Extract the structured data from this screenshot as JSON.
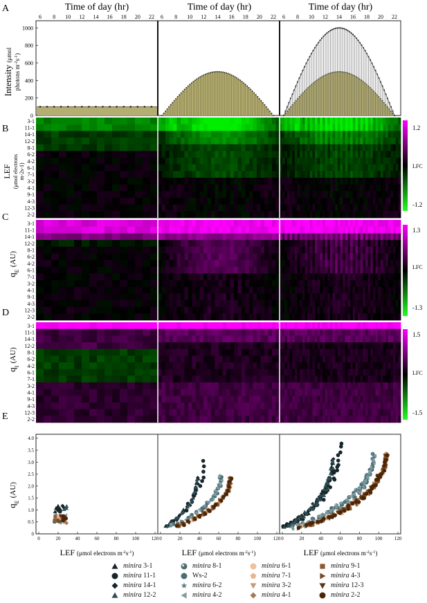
{
  "panel_letters": [
    "A",
    "B",
    "C",
    "D",
    "E"
  ],
  "colors": {
    "bar_fill": "#b5ae72",
    "bar_line": "#6a6536",
    "magenta": "#ff00ff",
    "green": "#22ee22",
    "dark": "#2a3a3a"
  },
  "timeaxis": {
    "title": "Time of day (hr)",
    "ticks": [
      "6",
      "8",
      "10",
      "12",
      "14",
      "16",
      "18",
      "20",
      "22"
    ]
  },
  "panelA": {
    "ylabel_main": "Intensity",
    "ylabel_sub1": "(μmol",
    "ylabel_sub2": "photons m",
    "ylabel_sup": "-2",
    "ylabel_s": "s",
    "ylabel_sup2": "-1",
    "ylabel_close": ")",
    "yticks": [
      "0",
      "200",
      "400",
      "600",
      "800",
      "1000"
    ]
  },
  "heatmap_rows": [
    "3-1",
    "11-1",
    "14-1",
    "12-2",
    "8-1",
    "6-2",
    "4-2",
    "6-1",
    "7-1",
    "3-2",
    "4-1",
    "9-1",
    "4-3",
    "12-3",
    "2-2"
  ],
  "panelB": {
    "ylabel": "LEF",
    "ylabel_sub": "(μmol electrons",
    "ylabel_sub2": "m-2s-1)",
    "scale_top": "1.2",
    "scale_mid": "LFC",
    "scale_bot": "-1.2"
  },
  "panelC": {
    "ylabel": "q",
    "ylabel_sub": "E",
    "ylabel_unit": "(AU)",
    "scale_top": "1.3",
    "scale_mid": "LFC",
    "scale_bot": "-1.3"
  },
  "panelD": {
    "ylabel": "q",
    "ylabel_sub": "I",
    "ylabel_unit": "(AU)",
    "scale_top": "1.5",
    "scale_mid": "LFC",
    "scale_bot": "-1.5"
  },
  "panelE": {
    "ylabel": "q",
    "ylabel_sub": "E",
    "ylabel_unit": "(AU)",
    "yticks": [
      "0",
      "0.5",
      "1.0",
      "1.5",
      "2.0",
      "2.5",
      "3.0",
      "3.5",
      "4.0"
    ],
    "xticks": [
      "0",
      "20",
      "40",
      "60",
      "80",
      "100",
      "120"
    ],
    "xlabel_main": "LEF",
    "xlabel_sub": "(μmol electrons m",
    "xlabel_sup": "-2",
    "xlabel_s": "s",
    "xlabel_sup2": "-1",
    "xlabel_close": ")"
  },
  "legend": [
    {
      "genus": "minira",
      "id": "3-1",
      "marker": "triangle",
      "color": "#17262a"
    },
    {
      "genus": "minira",
      "id": "11-1",
      "marker": "circle",
      "color": "#17262a"
    },
    {
      "genus": "minira",
      "id": "14-1",
      "marker": "diamond",
      "color": "#17262a"
    },
    {
      "genus": "minira",
      "id": "12-2",
      "marker": "triangle",
      "color": "#2f4f55"
    },
    {
      "genus": "minira",
      "id": "8-1",
      "marker": "circle-dot",
      "color": "#4c6d74"
    },
    {
      "genus": "",
      "id": "Ws-2",
      "marker": "circle",
      "color": "#4c6d74"
    },
    {
      "genus": "minira",
      "id": "6-2",
      "marker": "star",
      "color": "#5e8088"
    },
    {
      "genus": "minira",
      "id": "4-2",
      "marker": "triangle-left",
      "color": "#7f9aa0"
    },
    {
      "genus": "minira",
      "id": "6-1",
      "marker": "circle",
      "color": "#f0c09a"
    },
    {
      "genus": "minira",
      "id": "7-1",
      "marker": "pentagon",
      "color": "#e8b48a"
    },
    {
      "genus": "minira",
      "id": "3-2",
      "marker": "triangle-down",
      "color": "#c89a72"
    },
    {
      "genus": "minira",
      "id": "4-1",
      "marker": "diamond",
      "color": "#a87852"
    },
    {
      "genus": "minira",
      "id": "9-1",
      "marker": "square",
      "color": "#8a5a34"
    },
    {
      "genus": "minira",
      "id": "4-3",
      "marker": "triangle-right",
      "color": "#7a4a24"
    },
    {
      "genus": "minira",
      "id": "12-3",
      "marker": "triangle-down",
      "color": "#5a3412"
    },
    {
      "genus": "minira",
      "id": "2-2",
      "marker": "circle",
      "color": "#4a2608"
    }
  ],
  "chart_data": [
    {
      "type": "bar",
      "title": "",
      "xlabel": "Time of day (hr)",
      "ylabel": "Intensity (μmol photons m-2s-1)",
      "ylim": [
        0,
        1050
      ],
      "series": [
        {
          "name": "",
          "x": [
            6,
            22
          ],
          "values": [
            100,
            100
          ],
          "profile": "constant"
        },
        {
          "name": "",
          "x": [
            6,
            14,
            22
          ],
          "values": [
            0,
            500,
            0
          ],
          "profile": "sinusoidal"
        },
        {
          "name": "",
          "x": [
            6,
            14,
            22
          ],
          "values": [
            0,
            1000,
            0
          ],
          "profile": "sinusoidal fluctuating 500/1000"
        }
      ]
    },
    {
      "type": "scatter",
      "title": "",
      "xlabel": "LEF (μmol electrons m-2s-1)",
      "ylabel": "qE (AU)",
      "xlim": [
        0,
        120
      ],
      "ylim": [
        0,
        4.0
      ],
      "panels": [
        {
          "condition": "constant",
          "x_range": [
            15,
            28
          ],
          "y_range": [
            0.4,
            1.2
          ]
        },
        {
          "condition": "sinusoidal",
          "x_range": [
            5,
            75
          ],
          "y_range": [
            0.3,
            3.1
          ]
        },
        {
          "condition": "fluctuating",
          "x_range": [
            5,
            110
          ],
          "y_range": [
            0.3,
            3.8
          ]
        }
      ]
    }
  ]
}
